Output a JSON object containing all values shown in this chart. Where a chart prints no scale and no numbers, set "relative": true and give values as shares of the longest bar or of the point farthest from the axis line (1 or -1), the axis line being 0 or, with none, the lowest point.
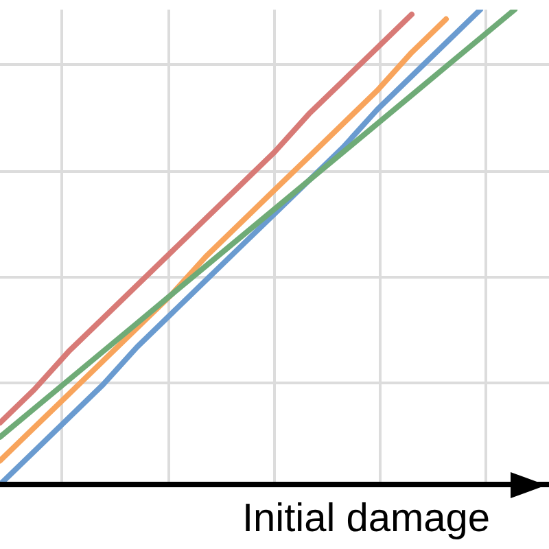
{
  "chart_data": {
    "type": "line",
    "xlabel": "Initial damage",
    "relative": true,
    "grid": true,
    "marker": "none",
    "line_style": "solid",
    "categories": [
      null,
      null,
      null,
      null,
      null,
      null,
      null,
      null,
      null,
      null,
      null,
      null,
      null,
      null,
      null,
      null,
      null
    ],
    "series": [
      {
        "color": "#6a9bd0",
        "values": [
          0,
          0.07,
          0.14,
          0.21,
          0.29,
          0.36,
          0.43,
          0.5,
          0.57,
          0.64,
          0.71,
          0.79,
          0.86,
          0.93,
          1.0,
          null,
          null
        ]
      },
      {
        "color": "#f8a45c",
        "values": [
          0.05,
          0.12,
          0.19,
          0.26,
          0.33,
          0.4,
          0.48,
          0.55,
          0.62,
          0.69,
          0.76,
          0.83,
          0.91,
          0.98,
          null,
          null,
          null
        ]
      },
      {
        "color": "#d87a76",
        "values": [
          0.13,
          0.2,
          0.28,
          0.35,
          0.42,
          0.49,
          0.56,
          0.63,
          0.7,
          0.78,
          0.85,
          0.92,
          0.99,
          null,
          null,
          null,
          null
        ]
      },
      {
        "color": "#6fab77",
        "values": [
          0.1,
          0.16,
          0.22,
          0.28,
          0.34,
          0.4,
          0.46,
          0.52,
          0.58,
          0.64,
          0.7,
          0.76,
          0.82,
          0.88,
          0.94,
          1.0,
          null
        ]
      }
    ]
  }
}
